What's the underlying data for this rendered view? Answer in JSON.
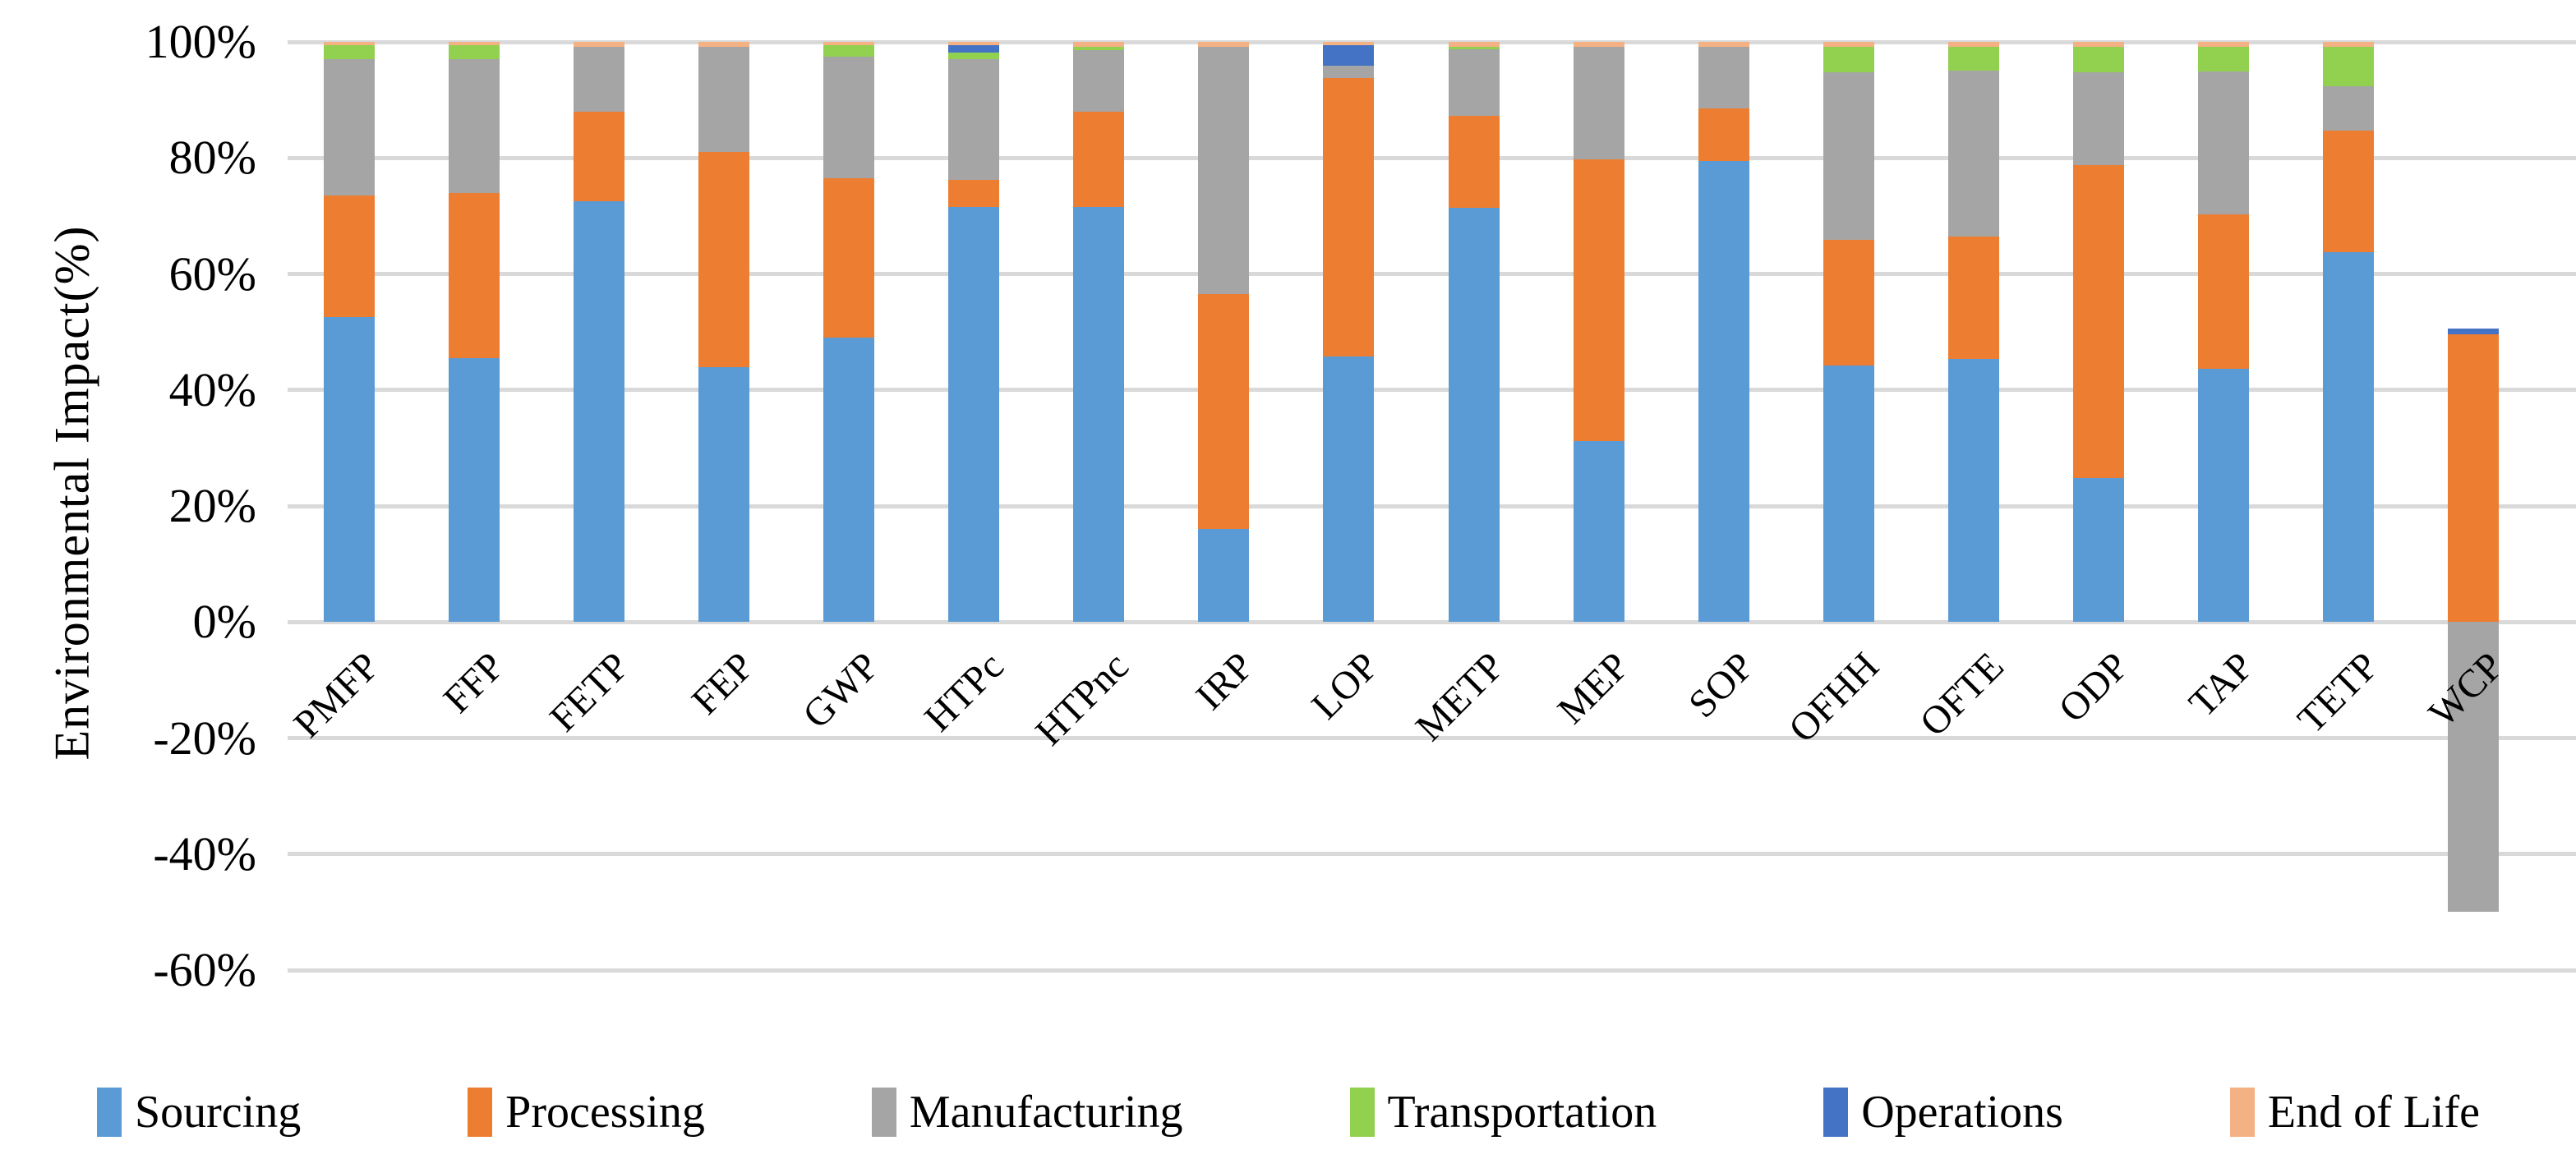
{
  "figure": {
    "background": "#ffffff",
    "gridline_color": "#d9d9d9",
    "text_color": "#000000"
  },
  "chart_data": {
    "type": "bar",
    "stacked": true,
    "title": "",
    "xlabel": "",
    "ylabel": "Environmental Impact(%)",
    "ylim": [
      -60,
      100
    ],
    "grid": true,
    "legend_position": "bottom",
    "yticks": [
      {
        "value": 100,
        "label": "100%"
      },
      {
        "value": 80,
        "label": "80%"
      },
      {
        "value": 60,
        "label": "60%"
      },
      {
        "value": 40,
        "label": "40%"
      },
      {
        "value": 20,
        "label": "20%"
      },
      {
        "value": 0,
        "label": "0%"
      },
      {
        "value": -20,
        "label": "-20%"
      },
      {
        "value": -40,
        "label": "-40%"
      },
      {
        "value": -60,
        "label": "-60%"
      }
    ],
    "categories": [
      "PMFP",
      "FFP",
      "FETP",
      "FEP",
      "GWP",
      "HTPc",
      "HTPnc",
      "IRP",
      "LOP",
      "METP",
      "MEP",
      "SOP",
      "OFHH",
      "OFTE",
      "ODP",
      "TAP",
      "TETP",
      "WCP"
    ],
    "series": [
      {
        "name": "Sourcing",
        "color": "#5B9BD5",
        "values": [
          52.5,
          45.5,
          72.5,
          44.0,
          49.0,
          71.5,
          71.5,
          16.0,
          45.8,
          71.4,
          31.2,
          79.4,
          44.2,
          45.3,
          24.8,
          43.6,
          63.8,
          0
        ]
      },
      {
        "name": "Processing",
        "color": "#ED7D31",
        "values": [
          21.0,
          28.5,
          15.5,
          37.0,
          27.5,
          4.7,
          16.5,
          40.5,
          47.9,
          15.9,
          48.5,
          9.2,
          21.7,
          21.1,
          54.0,
          26.7,
          20.9,
          49.6
        ]
      },
      {
        "name": "Manufacturing",
        "color": "#A5A5A5",
        "values": [
          23.5,
          23.0,
          11.2,
          18.2,
          21.0,
          20.8,
          10.6,
          42.7,
          2.2,
          11.4,
          19.5,
          10.6,
          28.8,
          28.6,
          16.0,
          24.6,
          7.6,
          -50.0
        ]
      },
      {
        "name": "Transportation",
        "color": "#92D050",
        "values": [
          2.5,
          2.5,
          0,
          0,
          2.0,
          1.1,
          0.6,
          0,
          0,
          0.5,
          0,
          0,
          4.5,
          4.2,
          4.3,
          4.3,
          6.9,
          0
        ]
      },
      {
        "name": "Operations",
        "color": "#4472C4",
        "values": [
          0,
          0,
          0,
          0,
          0,
          1.3,
          0,
          0,
          3.5,
          0,
          0,
          0,
          0,
          0,
          0,
          0,
          0,
          1.0
        ]
      },
      {
        "name": "End of Life",
        "color": "#F4B183",
        "values": [
          0.5,
          0.5,
          0.8,
          0.8,
          0.5,
          0.6,
          0.8,
          0.8,
          0.6,
          0.8,
          0.8,
          0.8,
          0.8,
          0.8,
          0.9,
          0.8,
          0.8,
          0
        ]
      }
    ]
  }
}
